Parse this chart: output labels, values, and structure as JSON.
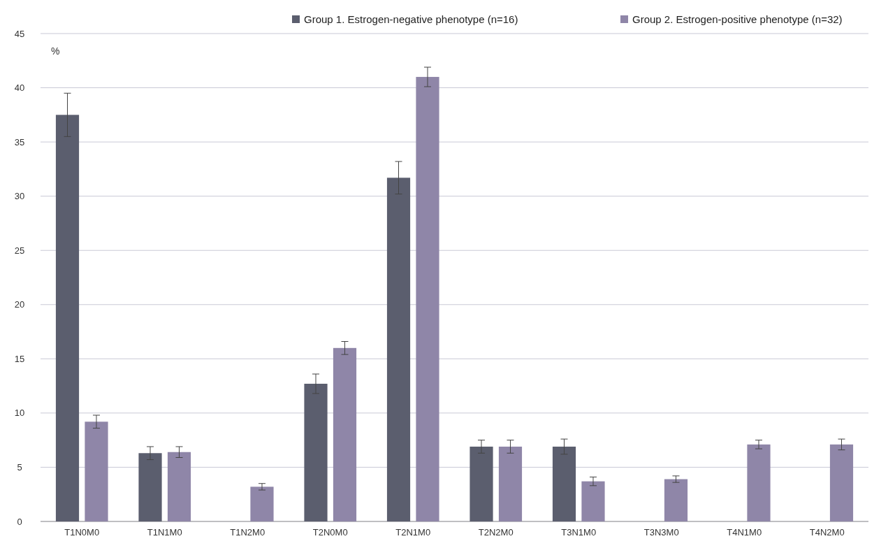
{
  "chart_data": {
    "type": "bar",
    "ylabel": "%",
    "categories": [
      "T1N0M0",
      "T1N1M0",
      "T1N2M0",
      "T2N0M0",
      "T2N1M0",
      "T2N2M0",
      "T3N1M0",
      "T3N3M0",
      "T4N1M0",
      "T4N2M0"
    ],
    "series": [
      {
        "name": "Group 1. Estrogen-negative phenotype (n=16)",
        "color": "#5b5e6e",
        "values": [
          37.5,
          6.3,
          null,
          12.7,
          31.7,
          6.9,
          6.9,
          null,
          null,
          null
        ],
        "errors": [
          2.0,
          0.6,
          null,
          0.9,
          1.5,
          0.6,
          0.7,
          null,
          null,
          null
        ]
      },
      {
        "name": "Group 2. Estrogen-positive phenotype (n=32)",
        "color": "#8f86a8",
        "values": [
          9.2,
          6.4,
          3.2,
          16.0,
          41.0,
          6.9,
          3.7,
          3.9,
          7.1,
          7.1
        ],
        "errors": [
          0.6,
          0.5,
          0.3,
          0.6,
          0.9,
          0.6,
          0.4,
          0.3,
          0.4,
          0.5
        ]
      }
    ],
    "ylim": [
      0,
      45
    ],
    "yticks": [
      0,
      5,
      10,
      15,
      20,
      25,
      30,
      35,
      40,
      45
    ],
    "grid": "y",
    "legend": "top right"
  }
}
